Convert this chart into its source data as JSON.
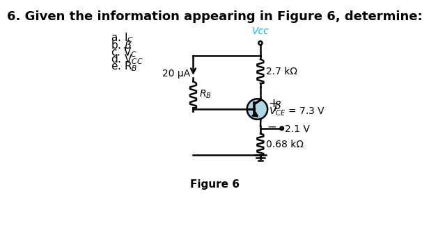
{
  "title": "6. Given the information appearing in Figure 6, determine:",
  "title_fontsize": 13,
  "title_fontweight": "bold",
  "figure_label": "Figure 6",
  "vcc_label": "Vcc",
  "ib_label": "20 μA",
  "rb_label": "RB",
  "rc_label": "2.7 kΩ",
  "re_label": "0.68 kΩ",
  "vce_label": "VCE = 7.3 V",
  "ve_label": "2.1 V",
  "bg_color": "#ffffff",
  "transistor_circle_color": "#add8e6",
  "circuit_line_color": "#000000",
  "vcc_color": "#00bfff",
  "text_color": "#000000"
}
